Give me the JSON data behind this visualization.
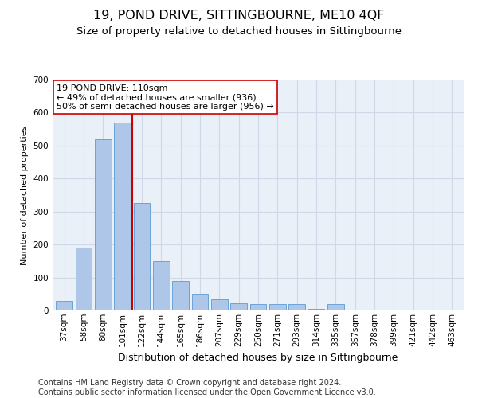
{
  "title1": "19, POND DRIVE, SITTINGBOURNE, ME10 4QF",
  "title2": "Size of property relative to detached houses in Sittingbourne",
  "xlabel": "Distribution of detached houses by size in Sittingbourne",
  "ylabel": "Number of detached properties",
  "categories": [
    "37sqm",
    "58sqm",
    "80sqm",
    "101sqm",
    "122sqm",
    "144sqm",
    "165sqm",
    "186sqm",
    "207sqm",
    "229sqm",
    "250sqm",
    "271sqm",
    "293sqm",
    "314sqm",
    "335sqm",
    "357sqm",
    "378sqm",
    "399sqm",
    "421sqm",
    "442sqm",
    "463sqm"
  ],
  "values": [
    30,
    190,
    520,
    570,
    325,
    150,
    90,
    50,
    35,
    22,
    20,
    20,
    20,
    5,
    20,
    0,
    0,
    0,
    0,
    0,
    0
  ],
  "bar_color": "#aec6e8",
  "bar_edge_color": "#5b9bd5",
  "vline_color": "#cc0000",
  "vline_pos": 3.5,
  "annotation_text": "19 POND DRIVE: 110sqm\n← 49% of detached houses are smaller (936)\n50% of semi-detached houses are larger (956) →",
  "annotation_box_color": "#ffffff",
  "annotation_box_edge_color": "#cc0000",
  "ylim": [
    0,
    700
  ],
  "yticks": [
    0,
    100,
    200,
    300,
    400,
    500,
    600,
    700
  ],
  "grid_color": "#d0d8e8",
  "bg_color": "#eaf0f8",
  "footer": "Contains HM Land Registry data © Crown copyright and database right 2024.\nContains public sector information licensed under the Open Government Licence v3.0.",
  "title1_fontsize": 11.5,
  "title2_fontsize": 9.5,
  "xlabel_fontsize": 9,
  "ylabel_fontsize": 8,
  "footer_fontsize": 7,
  "tick_fontsize": 7.5,
  "annotation_fontsize": 8
}
